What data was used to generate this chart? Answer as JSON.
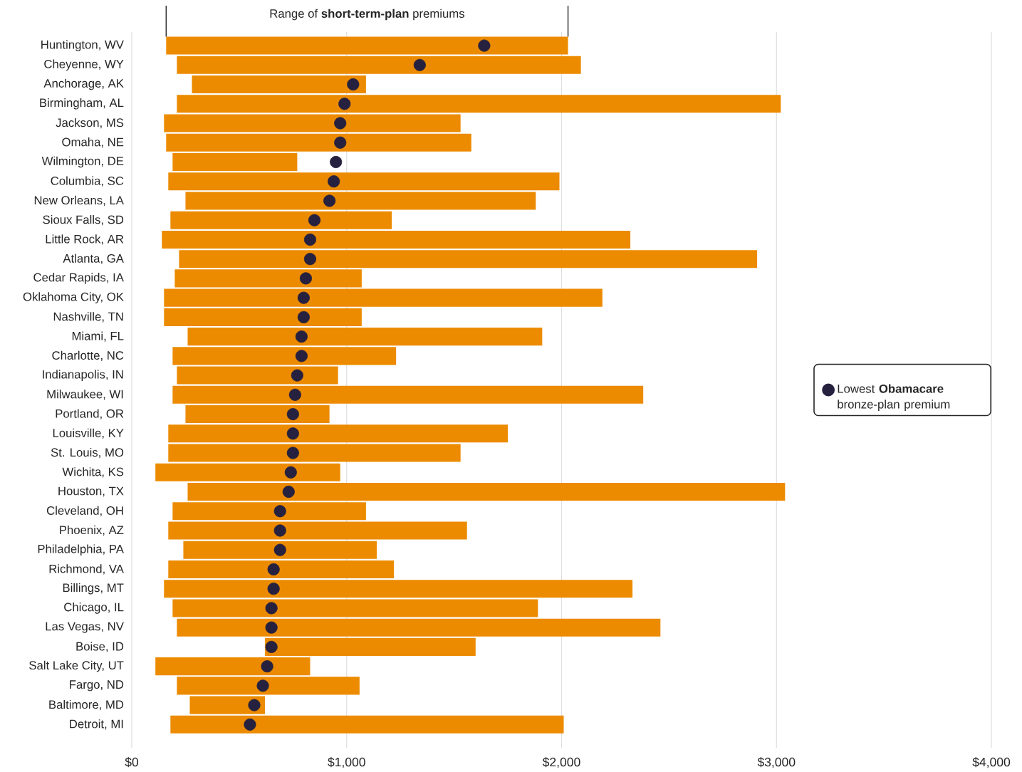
{
  "chart_data": {
    "type": "bar",
    "orientation": "horizontal",
    "categories": [
      "Huntington, WV",
      "Cheyenne, WY",
      "Anchorage, AK",
      "Birmingham, AL",
      "Jackson, MS",
      "Omaha, NE",
      "Wilmington, DE",
      "Columbia, SC",
      "New Orleans, LA",
      "Sioux Falls, SD",
      "Little Rock, AR",
      "Atlanta, GA",
      "Cedar Rapids, IA",
      "Oklahoma City, OK",
      "Nashville, TN",
      "Miami, FL",
      "Charlotte, NC",
      "Indianapolis, IN",
      "Milwaukee, WI",
      "Portland, OR",
      "Louisville, KY",
      "St. Louis, MO",
      "Wichita, KS",
      "Houston, TX",
      "Cleveland, OH",
      "Phoenix, AZ",
      "Philadelphia, PA",
      "Richmond, VA",
      "Billings, MT",
      "Chicago, IL",
      "Las Vegas, NV",
      "Boise, ID",
      "Salt Lake City, UT",
      "Fargo, ND",
      "Baltimore, MD",
      "Detroit, MI"
    ],
    "series": [
      {
        "name": "Range of **short-term-plan** premiums",
        "type": "bar",
        "color": "#ec8b00",
        "base": [
          160,
          210,
          280,
          210,
          150,
          160,
          190,
          170,
          250,
          180,
          140,
          220,
          200,
          150,
          150,
          260,
          190,
          210,
          190,
          250,
          170,
          170,
          110,
          260,
          190,
          170,
          240,
          170,
          150,
          190,
          210,
          620,
          110,
          210,
          270,
          180
        ],
        "values": [
          1870,
          1880,
          810,
          2810,
          1380,
          1420,
          580,
          1820,
          1630,
          1030,
          2180,
          2690,
          870,
          2040,
          920,
          1650,
          1040,
          750,
          2190,
          670,
          1580,
          1360,
          860,
          2780,
          900,
          1390,
          900,
          1050,
          2180,
          1700,
          2250,
          980,
          720,
          850,
          350,
          1830
        ]
      },
      {
        "name": "Lowest **Obamacare** bronze-plan premium",
        "type": "scatter",
        "color": "#26213f",
        "values": [
          1640,
          1340,
          1030,
          990,
          970,
          970,
          950,
          940,
          920,
          850,
          830,
          830,
          810,
          800,
          800,
          790,
          790,
          770,
          760,
          750,
          750,
          750,
          740,
          730,
          690,
          690,
          690,
          660,
          660,
          650,
          650,
          650,
          630,
          610,
          570,
          550
        ]
      }
    ],
    "xlim": [
      0,
      4000
    ],
    "xticks": [
      {
        "value": 0,
        "label": "$0"
      },
      {
        "value": 1000,
        "label": "$1,000"
      },
      {
        "value": 2000,
        "label": "$2,000"
      },
      {
        "value": 3000,
        "label": "$3,000"
      },
      {
        "value": 4000,
        "label": "$4,000"
      }
    ],
    "grid": "x",
    "legend": "right",
    "marker": "circle"
  }
}
